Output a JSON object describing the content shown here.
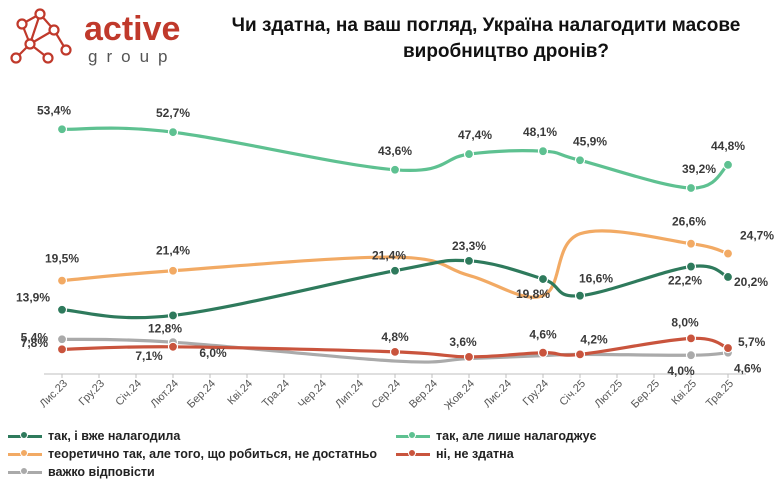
{
  "logo": {
    "brand": "active",
    "sub": "group",
    "icon": "network-molecule-icon"
  },
  "title": {
    "line1": "Чи здатна, на ваш погляд, Україна налагодити масове",
    "line2": "виробництво дронів?"
  },
  "colors": {
    "dark_green": "#2e7a5c",
    "light_green": "#5ec191",
    "orange": "#f2aa64",
    "red": "#c9543d",
    "gray": "#aaaaaa",
    "brand_red": "#c0392b"
  },
  "chart_data": {
    "type": "line",
    "categories": [
      "Лис.23",
      "Гру.23",
      "Січ.24",
      "Лют.24",
      "Бер.24",
      "Кві.24",
      "Тра.24",
      "Чер.24",
      "Лип.24",
      "Сер.24",
      "Вер.24",
      "Жов.24",
      "Лис.24",
      "Гру.24",
      "Січ.25",
      "Лют.25",
      "Бер.25",
      "Кві.25",
      "Тра.25"
    ],
    "series": [
      {
        "name": "так, і вже налагодила",
        "color": "#2e7a5c",
        "points": [
          {
            "i": 0,
            "v": 13.9,
            "label": "13,9%"
          },
          {
            "i": 3,
            "v": 12.8,
            "label": "12,8%"
          },
          {
            "i": 9,
            "v": 21.4,
            "label": "21,4%"
          },
          {
            "i": 11,
            "v": 23.3,
            "label": "23,3%"
          },
          {
            "i": 13,
            "v": 19.8,
            "label": "19,8%"
          },
          {
            "i": 14,
            "v": 16.6,
            "label": "16,6%"
          },
          {
            "i": 17,
            "v": 22.2,
            "label": "22,2%"
          },
          {
            "i": 18,
            "v": 20.2,
            "label": "20,2%"
          }
        ]
      },
      {
        "name": "так, але лише налагоджує",
        "color": "#5ec191",
        "points": [
          {
            "i": 0,
            "v": 53.4,
            "label": "53,4%"
          },
          {
            "i": 3,
            "v": 52.7,
            "label": "52,7%"
          },
          {
            "i": 9,
            "v": 43.6,
            "label": "43,6%"
          },
          {
            "i": 11,
            "v": 47.4,
            "label": "47,4%"
          },
          {
            "i": 13,
            "v": 48.1,
            "label": "48,1%"
          },
          {
            "i": 14,
            "v": 45.9,
            "label": "45,9%"
          },
          {
            "i": 17,
            "v": 39.2,
            "label": "39,2%"
          },
          {
            "i": 18,
            "v": 44.8,
            "label": "44,8%"
          }
        ]
      },
      {
        "name": "теоретично так, але того, що робиться, не достатньо",
        "color": "#f2aa64",
        "points": [
          {
            "i": 0,
            "v": 19.5,
            "label": "19,5%"
          },
          {
            "i": 3,
            "v": 21.4,
            "label": "21,4%"
          },
          {
            "i": 9,
            "v": 24.0,
            "label": ""
          },
          {
            "i": 11,
            "v": 20.5,
            "label": ""
          },
          {
            "i": 13,
            "v": 16.6,
            "label": ""
          },
          {
            "i": 14,
            "v": 28.5,
            "label": ""
          },
          {
            "i": 17,
            "v": 26.6,
            "label": "26,6%"
          },
          {
            "i": 18,
            "v": 24.7,
            "label": "24,7%"
          }
        ]
      },
      {
        "name": "ні, не здатна",
        "color": "#c9543d",
        "points": [
          {
            "i": 0,
            "v": 5.4,
            "label": "5,4%"
          },
          {
            "i": 3,
            "v": 6.0,
            "label": "6,0%"
          },
          {
            "i": 9,
            "v": 4.8,
            "label": "4,8%"
          },
          {
            "i": 11,
            "v": 3.6,
            "label": "3,6%"
          },
          {
            "i": 13,
            "v": 4.6,
            "label": "4,6%"
          },
          {
            "i": 14,
            "v": 4.2,
            "label": "4,2%"
          },
          {
            "i": 17,
            "v": 8.0,
            "label": "8,0%"
          },
          {
            "i": 18,
            "v": 5.7,
            "label": "5,7%"
          }
        ]
      },
      {
        "name": "важко відповісти",
        "color": "#aaaaaa",
        "points": [
          {
            "i": 0,
            "v": 7.8,
            "label": "7,8%"
          },
          {
            "i": 3,
            "v": 7.1,
            "label": "7,1%"
          },
          {
            "i": 9,
            "v": 2.6,
            "label": ""
          },
          {
            "i": 11,
            "v": 3.2,
            "label": ""
          },
          {
            "i": 13,
            "v": 3.9,
            "label": ""
          },
          {
            "i": 14,
            "v": 4.2,
            "label": ""
          },
          {
            "i": 17,
            "v": 4.0,
            "label": "4,0%"
          },
          {
            "i": 18,
            "v": 4.6,
            "label": "4,6%"
          }
        ]
      }
    ],
    "ylim": [
      0,
      60
    ],
    "xlabel": "",
    "ylabel": "",
    "grid": false,
    "legend": "bottom"
  }
}
